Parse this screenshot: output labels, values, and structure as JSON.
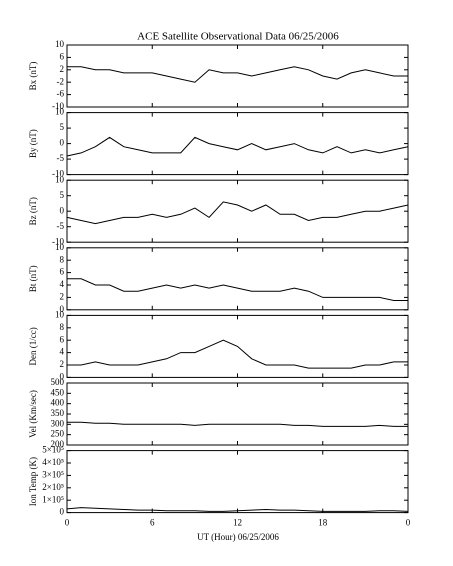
{
  "chart_data": [
    {
      "type": "line",
      "title": "ACE Satellite Observational Data   06/25/2006",
      "ylabel": "Bx (nT)",
      "color": "#000000",
      "x": [
        0,
        1,
        2,
        3,
        4,
        5,
        6,
        7,
        8,
        9,
        10,
        11,
        12,
        13,
        14,
        15,
        16,
        17,
        18,
        19,
        20,
        21,
        22,
        23,
        24
      ],
      "values": [
        3,
        3,
        2,
        2,
        1,
        1,
        1,
        0,
        -1,
        -2,
        2,
        1,
        1,
        0,
        1,
        2,
        3,
        2,
        0,
        -1,
        1,
        2,
        1,
        0,
        0
      ],
      "xlim": [
        0,
        24
      ],
      "ylim": [
        -10,
        10
      ],
      "yticks": [
        -10,
        -6,
        -2,
        2,
        6,
        10
      ]
    },
    {
      "type": "line",
      "ylabel": "By (nT)",
      "color": "#000000",
      "x": [
        0,
        1,
        2,
        3,
        4,
        5,
        6,
        7,
        8,
        9,
        10,
        11,
        12,
        13,
        14,
        15,
        16,
        17,
        18,
        19,
        20,
        21,
        22,
        23,
        24
      ],
      "values": [
        -4,
        -3,
        -1,
        2,
        -1,
        -2,
        -3,
        -3,
        -3,
        2,
        0,
        -1,
        -2,
        0,
        -2,
        -1,
        0,
        -2,
        -3,
        -1,
        -3,
        -2,
        -3,
        -2,
        -1
      ],
      "xlim": [
        0,
        24
      ],
      "ylim": [
        -10,
        10
      ],
      "yticks": [
        -10,
        -5,
        0,
        5,
        10
      ]
    },
    {
      "type": "line",
      "ylabel": "Bz (nT)",
      "color": "#000000",
      "x": [
        0,
        1,
        2,
        3,
        4,
        5,
        6,
        7,
        8,
        9,
        10,
        11,
        12,
        13,
        14,
        15,
        16,
        17,
        18,
        19,
        20,
        21,
        22,
        23,
        24
      ],
      "values": [
        -2,
        -3,
        -4,
        -3,
        -2,
        -2,
        -1,
        -2,
        -1,
        1,
        -2,
        3,
        2,
        0,
        2,
        -1,
        -1,
        -3,
        -2,
        -2,
        -1,
        0,
        0,
        1,
        2
      ],
      "xlim": [
        0,
        24
      ],
      "ylim": [
        -10,
        10
      ],
      "yticks": [
        -10,
        -5,
        0,
        5,
        10
      ]
    },
    {
      "type": "line",
      "ylabel": "Bt (nT)",
      "color": "#000000",
      "x": [
        0,
        1,
        2,
        3,
        4,
        5,
        6,
        7,
        8,
        9,
        10,
        11,
        12,
        13,
        14,
        15,
        16,
        17,
        18,
        19,
        20,
        21,
        22,
        23,
        24
      ],
      "values": [
        5,
        5,
        4,
        4,
        3,
        3,
        3.5,
        4,
        3.5,
        4,
        3.5,
        4,
        3.5,
        3,
        3,
        3,
        3.5,
        3,
        2,
        2,
        2,
        2,
        2,
        1.5,
        1.5
      ],
      "xlim": [
        0,
        24
      ],
      "ylim": [
        0,
        10
      ],
      "yticks": [
        0,
        2,
        4,
        6,
        8,
        10
      ]
    },
    {
      "type": "line",
      "ylabel": "Den (1/cc)",
      "color": "#000000",
      "x": [
        0,
        1,
        2,
        3,
        4,
        5,
        6,
        7,
        8,
        9,
        10,
        11,
        12,
        13,
        14,
        15,
        16,
        17,
        18,
        19,
        20,
        21,
        22,
        23,
        24
      ],
      "values": [
        2,
        2,
        2.5,
        2,
        2,
        2,
        2.5,
        3,
        4,
        4,
        5,
        6,
        5,
        3,
        2,
        2,
        2,
        1.5,
        1.5,
        1.5,
        1.5,
        2,
        2,
        2.5,
        2.5
      ],
      "xlim": [
        0,
        24
      ],
      "ylim": [
        0,
        10
      ],
      "yticks": [
        0,
        2,
        4,
        6,
        8,
        10
      ]
    },
    {
      "type": "line",
      "ylabel": "Vel (Km/sec)",
      "color": "#000000",
      "x": [
        0,
        1,
        2,
        3,
        4,
        5,
        6,
        7,
        8,
        9,
        10,
        11,
        12,
        13,
        14,
        15,
        16,
        17,
        18,
        19,
        20,
        21,
        22,
        23,
        24
      ],
      "values": [
        310,
        310,
        305,
        305,
        300,
        300,
        300,
        300,
        300,
        295,
        300,
        300,
        300,
        300,
        300,
        300,
        295,
        295,
        290,
        290,
        290,
        290,
        295,
        290,
        290
      ],
      "xlim": [
        0,
        24
      ],
      "ylim": [
        200,
        500
      ],
      "yticks": [
        200,
        250,
        300,
        350,
        400,
        450,
        500
      ]
    },
    {
      "type": "line",
      "ylabel": "Ion Temp (K)",
      "color": "#000000",
      "x_label": "UT (Hour)   06/25/2006",
      "x": [
        0,
        1,
        2,
        3,
        4,
        5,
        6,
        7,
        8,
        9,
        10,
        11,
        12,
        13,
        14,
        15,
        16,
        17,
        18,
        19,
        20,
        21,
        22,
        23,
        24
      ],
      "values": [
        30000,
        40000,
        35000,
        30000,
        25000,
        20000,
        20000,
        15000,
        15000,
        15000,
        10000,
        10000,
        15000,
        20000,
        25000,
        20000,
        20000,
        15000,
        10000,
        10000,
        10000,
        10000,
        15000,
        15000,
        10000
      ],
      "xlim": [
        0,
        24
      ],
      "ylim": [
        0,
        500000
      ],
      "yticks": [
        0,
        {
          "value": 100000,
          "label": "1×10⁵"
        },
        {
          "value": 200000,
          "label": "2×10⁵"
        },
        {
          "value": 300000,
          "label": "3×10⁵"
        },
        {
          "value": 400000,
          "label": "4×10⁵"
        },
        {
          "value": 500000,
          "label": "5×10⁵"
        }
      ],
      "xticks": [
        0,
        6,
        12,
        18,
        {
          "value": 24,
          "label": "0"
        }
      ]
    }
  ]
}
